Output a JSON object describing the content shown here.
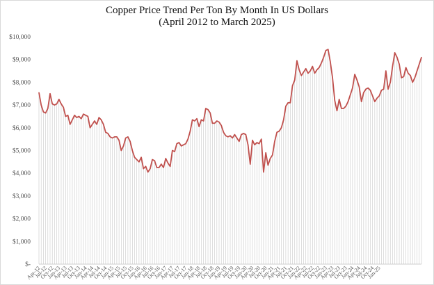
{
  "chart_data": {
    "type": "area",
    "title": "Copper Price Trend Per Ton By Month In US Dollars",
    "subtitle": "(April 2012 to March 2025)",
    "xlabel": "",
    "ylabel": "",
    "ylim": [
      0,
      10000
    ],
    "yticks": [
      0,
      1000,
      2000,
      3000,
      4000,
      5000,
      6000,
      7000,
      8000,
      9000,
      10000
    ],
    "ytick_labels": [
      "$-",
      "$1,000",
      "$2,000",
      "$3,000",
      "$4,000",
      "$5,000",
      "$6,000",
      "$7,000",
      "$8,000",
      "$9,000",
      "$10,000"
    ],
    "x_tick_labels": [
      "Apr-12",
      "Jul-12",
      "Oct-12",
      "Jan-13",
      "Apr-13",
      "Jul-13",
      "Oct-13",
      "Jan-14",
      "Apr-14",
      "Jul-14",
      "Oct-14",
      "Jan-15",
      "Apr-15",
      "Jul-15",
      "Oct-15",
      "Jan-16",
      "Apr-16",
      "Jul-16",
      "Oct-16",
      "Jan-17",
      "Apr-17",
      "Jul-17",
      "Oct-17",
      "Jan-18",
      "Apr-18",
      "Jul-18",
      "Oct-18",
      "Jan-19",
      "Apr-19",
      "Jul-19",
      "Oct-19",
      "Jan-20",
      "Apr-20",
      "Jul-20",
      "Oct-20",
      "Jan-21",
      "Apr-21",
      "Jul-21",
      "Oct-21",
      "Jan-22",
      "Apr-22",
      "Jul-22",
      "Oct-22",
      "Jan-23",
      "Apr-23",
      "Jul-23",
      "Oct-23",
      "Jan-24",
      "Apr-24",
      "Jul-24",
      "Oct-24",
      "Jan-25"
    ],
    "grid": "vertical gridlines per month",
    "legend": "none",
    "line_color": "#c0504d",
    "series": [
      {
        "values": [
          7550,
          7000,
          6700,
          6650,
          6850,
          7500,
          7050,
          7000,
          7050,
          7250,
          7050,
          6900,
          6500,
          6550,
          6150,
          6350,
          6550,
          6450,
          6500,
          6400,
          6600,
          6550,
          6500,
          6000,
          6150,
          6300,
          6150,
          6450,
          6350,
          6150,
          5800,
          5750,
          5600,
          5550,
          5600,
          5600,
          5450,
          5000,
          5200,
          5550,
          5600,
          5400,
          5000,
          4700,
          4600,
          4500,
          4700,
          4200,
          4300,
          4050,
          4200,
          4600,
          4550,
          4250,
          4250,
          4400,
          4250,
          4650,
          4450,
          4300,
          5000,
          4950,
          5300,
          5350,
          5200,
          5250,
          5300,
          5500,
          5850,
          6350,
          6300,
          6400,
          6050,
          6350,
          6300,
          6850,
          6800,
          6650,
          6200,
          6200,
          6300,
          6250,
          6100,
          5800,
          5650,
          5600,
          5650,
          5550,
          5700,
          5550,
          5400,
          5700,
          5750,
          5700,
          5250,
          4400,
          5450,
          5250,
          5350,
          5300,
          5500,
          4050,
          4900,
          4350,
          4650,
          4800,
          5400,
          5800,
          5850,
          6000,
          6350,
          6950,
          7100,
          7100,
          7850,
          8100,
          8950,
          8550,
          8300,
          8450,
          8600,
          8400,
          8500,
          8700,
          8400,
          8550,
          8650,
          8850,
          9100,
          9400,
          9450,
          8900,
          8200,
          7200,
          6750,
          7250,
          6850,
          6850,
          6950,
          7150,
          7450,
          7750,
          8350,
          8100,
          7800,
          7150,
          7550,
          7700,
          7750,
          7650,
          7400,
          7150,
          7300,
          7400,
          7650,
          7700,
          8500,
          7700,
          8000,
          8700,
          9300,
          9100,
          8800,
          8200,
          8250,
          8650,
          8400,
          8300,
          8000,
          8200,
          8500,
          8800,
          9100
        ]
      }
    ]
  }
}
